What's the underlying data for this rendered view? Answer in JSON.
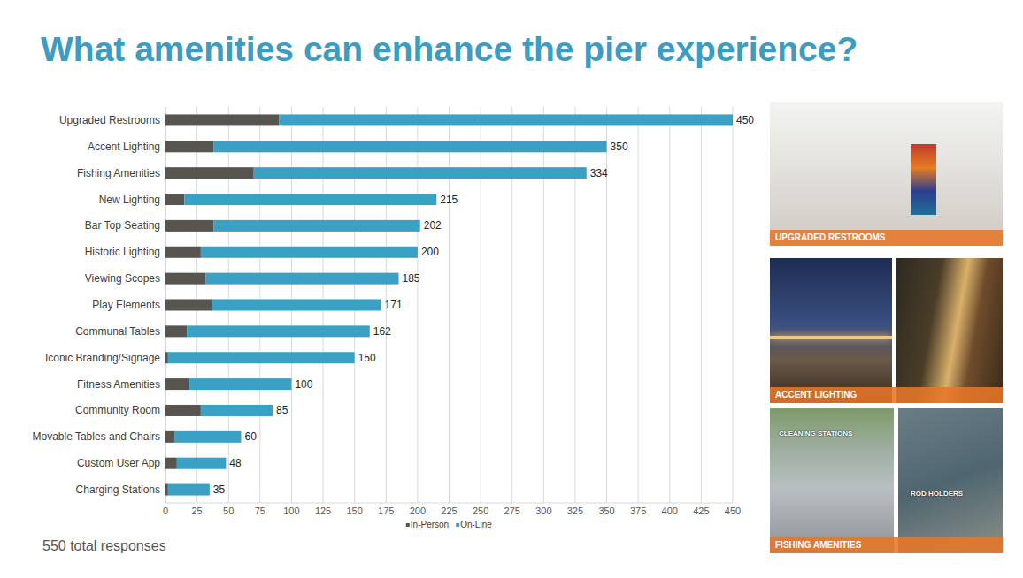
{
  "chart_data": {
    "type": "bar",
    "title": "What amenities can enhance the pier experience?",
    "annotation": "550 total responses",
    "orientation": "horizontal",
    "stacked": true,
    "grid": true,
    "legend": "bottom",
    "categories": [
      "Upgraded Restrooms",
      "Accent Lighting",
      "Fishing Amenities",
      "New Lighting",
      "Bar Top Seating",
      "Historic Lighting",
      "Viewing Scopes",
      "Play Elements",
      "Communal Tables",
      "Iconic Branding/Signage",
      "Fitness Amenities",
      "Community Room",
      "Movable Tables and Chairs",
      "Custom User App",
      "Charging Stations"
    ],
    "series": [
      {
        "name": "In-Person",
        "color": "#58544f",
        "values": [
          90,
          38,
          70,
          15,
          38,
          28,
          32,
          37,
          17,
          2,
          19,
          28,
          7,
          9,
          2
        ]
      },
      {
        "name": "On-Line",
        "color": "#3aa0c4",
        "values": [
          360,
          312,
          264,
          200,
          164,
          172,
          153,
          134,
          145,
          148,
          81,
          57,
          53,
          39,
          33
        ]
      }
    ],
    "totals": [
      450,
      350,
      334,
      215,
      202,
      200,
      185,
      171,
      162,
      150,
      100,
      85,
      60,
      48,
      35
    ],
    "xlim": [
      0,
      450
    ],
    "xticks": [
      0,
      25,
      50,
      75,
      100,
      125,
      150,
      175,
      200,
      225,
      250,
      275,
      300,
      325,
      350,
      375,
      400,
      425,
      450
    ]
  },
  "photos": [
    {
      "caption": "UPGRADED RESTROOMS"
    },
    {
      "caption": "ACCENT LIGHTING"
    },
    {
      "caption": "FISHING AMENITIES",
      "labels": [
        "CLEANING STATIONS",
        "ROD HOLDERS"
      ]
    }
  ]
}
